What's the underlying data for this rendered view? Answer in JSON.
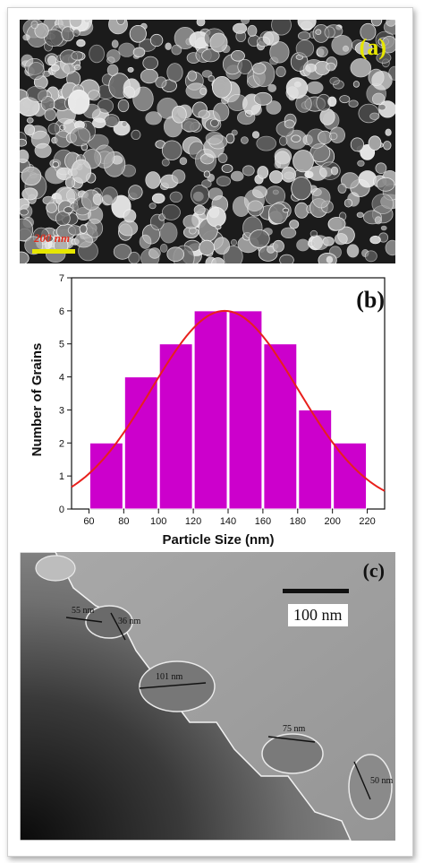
{
  "panel_a": {
    "label": "(a)",
    "scale_bar_text": "200 nm",
    "label_color": "#e6e600",
    "scale_text_color": "#e03020",
    "scale_bar_color": "#e6e600"
  },
  "panel_b": {
    "label": "(b)",
    "chart_data": {
      "type": "bar",
      "xlabel": "Particle Size (nm)",
      "ylabel": "Number of Grains",
      "bin_edges": [
        60,
        80,
        100,
        120,
        140,
        160,
        180,
        200,
        220
      ],
      "values": [
        2,
        4,
        5,
        6,
        6,
        5,
        3,
        2
      ],
      "xlim": [
        50,
        230
      ],
      "ylim": [
        0,
        7
      ],
      "x_ticks": [
        60,
        80,
        100,
        120,
        140,
        160,
        180,
        200,
        220
      ],
      "y_ticks": [
        0,
        1,
        2,
        3,
        4,
        5,
        6,
        7
      ],
      "bar_color": "#cc00cc",
      "curve": {
        "type": "gaussian fit",
        "peak_x": 138,
        "peak_y": 6.0,
        "sigma": 42,
        "color": "#e8201c"
      },
      "grid": false
    }
  },
  "panel_c": {
    "label": "(c)",
    "scale_bar_text": "100 nm",
    "measurements": [
      "55 nm",
      "36 nm",
      "101 nm",
      "75 nm",
      "50 nm"
    ]
  }
}
